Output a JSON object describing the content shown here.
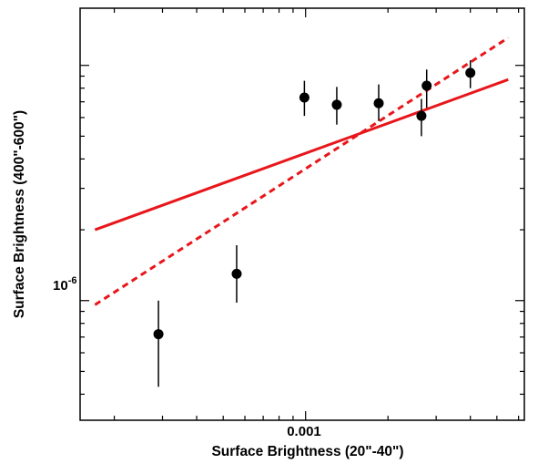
{
  "chart_data": {
    "type": "scatter",
    "xlabel": "Surface Brightness (20\"-40\")",
    "ylabel": "Surface Brightness (400\"-600\")",
    "x_scale": "log",
    "y_scale": "log",
    "xlim": [
      0.00015,
      0.0063
    ],
    "ylim": [
      3.1e-07,
      1.75e-05
    ],
    "x_ticks": [
      {
        "value": 0.001,
        "label": "0.001"
      }
    ],
    "y_ticks": [
      {
        "value": 1e-06,
        "label_base": "10",
        "label_exp": "-6"
      }
    ],
    "grid": false,
    "series": [
      {
        "points": [
          {
            "x": 0.00029,
            "y": 7.2e-07,
            "ylo": 4.3e-07,
            "yhi": 1e-06
          },
          {
            "x": 0.00056,
            "y": 1.3e-06,
            "ylo": 9.8e-07,
            "yhi": 1.72e-06
          },
          {
            "x": 0.00099,
            "y": 7.3e-06,
            "ylo": 6.1e-06,
            "yhi": 8.6e-06
          },
          {
            "x": 0.0013,
            "y": 6.8e-06,
            "ylo": 5.6e-06,
            "yhi": 8.1e-06
          },
          {
            "x": 0.00185,
            "y": 6.9e-06,
            "ylo": 5.8e-06,
            "yhi": 8.3e-06
          },
          {
            "x": 0.00265,
            "y": 6.1e-06,
            "ylo": 5e-06,
            "yhi": 7.2e-06
          },
          {
            "x": 0.00277,
            "y": 8.2e-06,
            "ylo": 6.6e-06,
            "yhi": 9.6e-06
          },
          {
            "x": 0.004,
            "y": 9.3e-06,
            "ylo": 8e-06,
            "yhi": 1.05e-05
          }
        ]
      }
    ],
    "fits": [
      {
        "style": "solid",
        "color": "#e8161b",
        "x": [
          0.00017,
          0.0055
        ],
        "y": [
          2e-06,
          8.7e-06
        ]
      },
      {
        "style": "dashed",
        "color": "#e8161b",
        "x": [
          0.00017,
          0.0055
        ],
        "y": [
          9.6e-07,
          1.31e-05
        ]
      }
    ]
  }
}
